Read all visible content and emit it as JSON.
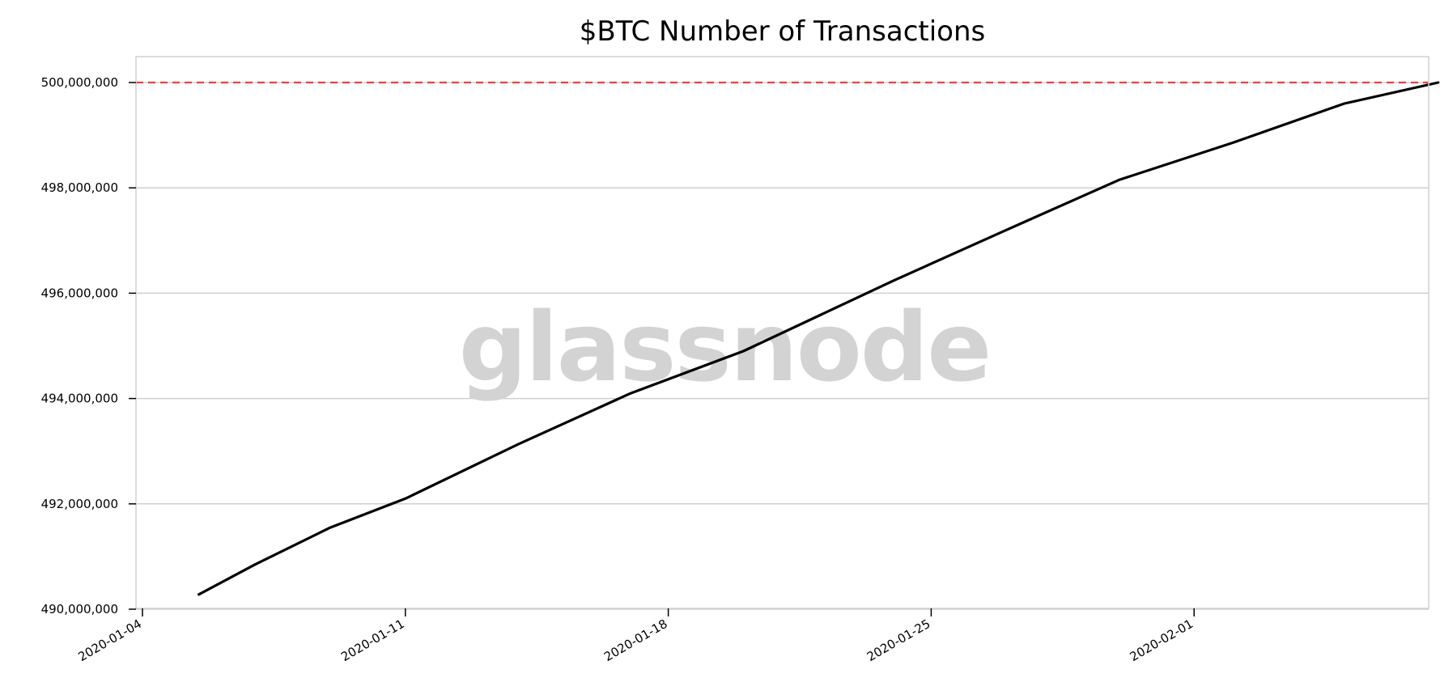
{
  "watermark": "glassnode",
  "colors": {
    "line": "#000000",
    "threshold": "#e8423f",
    "grid": "#d0d0d0",
    "frame": "#d0d0d0",
    "watermark": "#d3d3d3"
  },
  "chart_data": {
    "type": "line",
    "title": "$BTC Number of Transactions",
    "xlabel": "",
    "ylabel": "",
    "x_start": "2020-01-04",
    "x_end": "2020-02-10",
    "xlim": [
      "2020-01-04",
      "2020-02-10"
    ],
    "ylim": [
      490000000,
      500500000
    ],
    "grid": "horizontal",
    "legend": "none",
    "threshold": 500000000,
    "y_ticks": [
      {
        "value": 490000000,
        "label": "490,000,000"
      },
      {
        "value": 492000000,
        "label": "492,000,000"
      },
      {
        "value": 494000000,
        "label": "494,000,000"
      },
      {
        "value": 496000000,
        "label": "496,000,000"
      },
      {
        "value": 498000000,
        "label": "498,000,000"
      },
      {
        "value": 500000000,
        "label": "500,000,000"
      }
    ],
    "x_ticks": [
      {
        "value": "2020-01-04",
        "label": "2020-01-04"
      },
      {
        "value": "2020-01-11",
        "label": "2020-01-11"
      },
      {
        "value": "2020-01-18",
        "label": "2020-01-18"
      },
      {
        "value": "2020-01-25",
        "label": "2020-01-25"
      },
      {
        "value": "2020-02-01",
        "label": "2020-02-01"
      }
    ],
    "series": [
      {
        "x": [
          "2020-01-05 12:00",
          "2020-01-07 00:00",
          "2020-01-09 00:00",
          "2020-01-11 00:00",
          "2020-01-14 00:00",
          "2020-01-17 00:00",
          "2020-01-20 00:00",
          "2020-01-24 00:00",
          "2020-01-27 00:00",
          "2020-01-30 00:00",
          "2020-02-02 00:00",
          "2020-02-05 00:00",
          "2020-02-07 12:00"
        ],
        "values": [
          490280000,
          490850000,
          491550000,
          492100000,
          493130000,
          494100000,
          494900000,
          496240000,
          497200000,
          498150000,
          498850000,
          499600000,
          500000000
        ]
      }
    ]
  }
}
